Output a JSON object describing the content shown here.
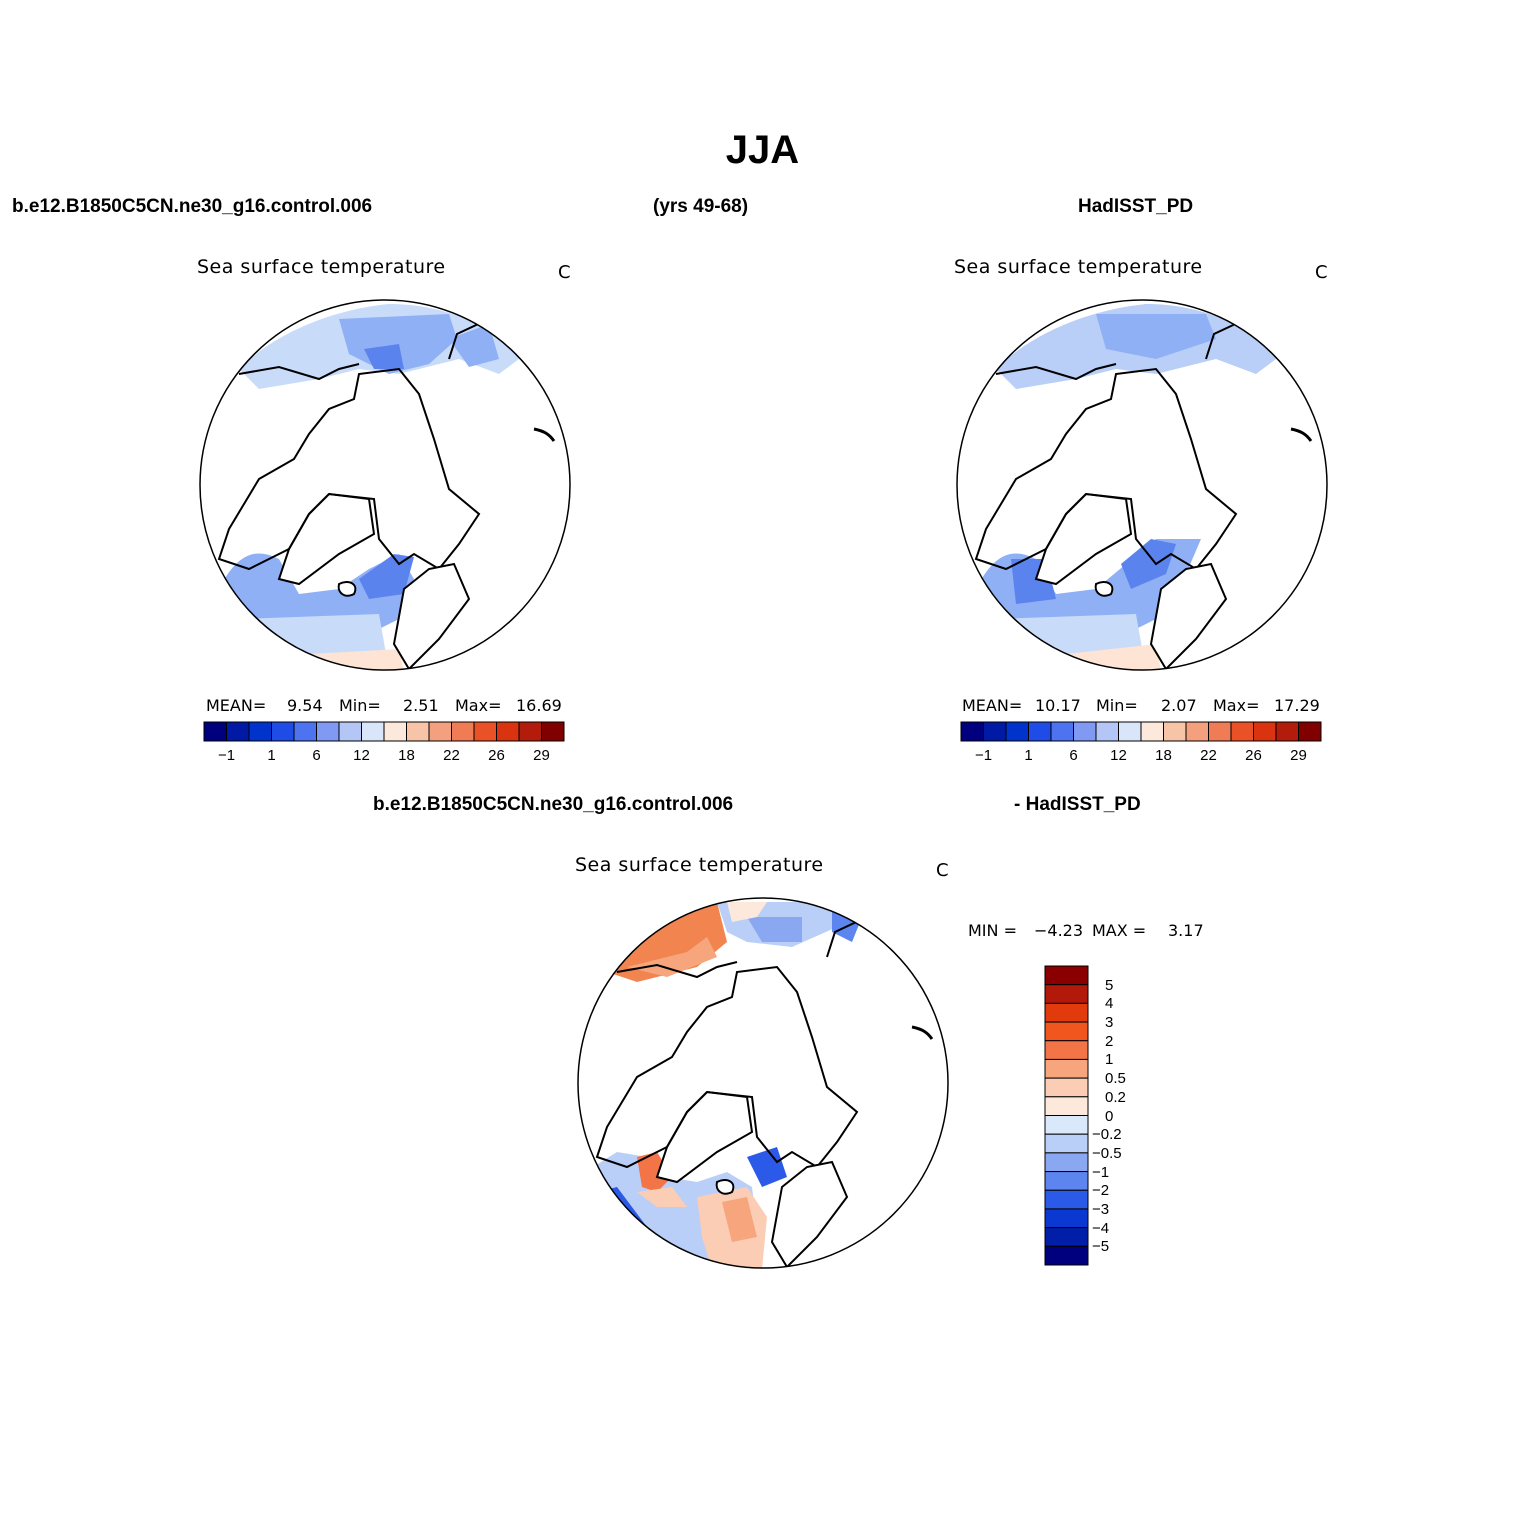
{
  "figure": {
    "season": "JJA",
    "top_left_header": "b.e12.B1850C5CN.ne30_g16.control.006",
    "top_center_header": "(yrs 49-68)",
    "top_right_header": "HadISST_PD",
    "bottom_left_header": "b.e12.B1850C5CN.ne30_g16.control.006",
    "bottom_right_header": "- HadISST_PD"
  },
  "panels": {
    "model": {
      "title": "Sea surface temperature",
      "units": "C",
      "stats": {
        "mean_label": "MEAN=",
        "mean": "9.54",
        "min_label": "Min=",
        "min": "2.51",
        "max_label": "Max=",
        "max": "16.69"
      }
    },
    "obs": {
      "title": "Sea surface temperature",
      "units": "C",
      "stats": {
        "mean_label": "MEAN=",
        "mean": "10.17",
        "min_label": "Min=",
        "min": "2.07",
        "max_label": "Max=",
        "max": "17.29"
      }
    },
    "diff": {
      "title": "Sea surface temperature",
      "units": "C",
      "stats": {
        "min_label": "MIN =",
        "min": "−4.23",
        "max_label": "MAX =",
        "max": "3.17"
      }
    }
  },
  "abs_colorbar": {
    "colors": [
      "#00007f",
      "#001aa6",
      "#0033cc",
      "#1f4ce6",
      "#4d73f0",
      "#8099f2",
      "#b3c6f5",
      "#d9e6fa",
      "#fde9dc",
      "#f8c4a7",
      "#f4a07e",
      "#f07c56",
      "#eb5126",
      "#d9330f",
      "#b31c0a",
      "#800000"
    ],
    "tick_labels": [
      "−1",
      "1",
      "6",
      "12",
      "18",
      "22",
      "26",
      "29"
    ]
  },
  "diff_colorbar": {
    "colors_top_to_bottom": [
      "#8a0000",
      "#b3190a",
      "#e03a0d",
      "#f2561f",
      "#f27447",
      "#f7a57c",
      "#fbcdb4",
      "#fde8dc",
      "#d9e8fb",
      "#b9cff7",
      "#8aa8f2",
      "#5c85f0",
      "#2b5ae8",
      "#0a38d0",
      "#001ea8",
      "#00007f"
    ],
    "labels_top_to_bottom": [
      "5",
      "4",
      "3",
      "2",
      "1",
      "0.5",
      "0.2",
      "0",
      "−0.2",
      "−0.5",
      "−1",
      "−2",
      "−3",
      "−4",
      "−5"
    ]
  },
  "colors": {
    "ocean_blue": "#8fb0f5",
    "ocean_deep_blue": "#5b83ee",
    "ocean_light_blue": "#c8dbf9",
    "ocean_pale": "#fde4d4",
    "warm_orange": "#f2854f",
    "land": "#ffffff",
    "coastline": "#000000"
  }
}
